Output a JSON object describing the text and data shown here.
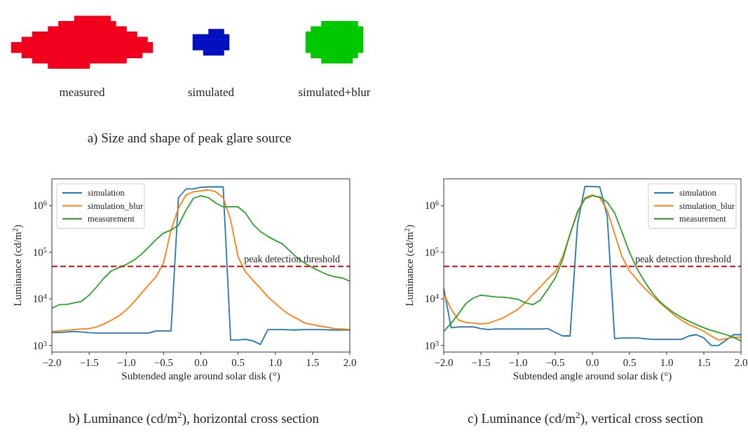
{
  "chart_data": [
    {
      "type": "other",
      "title": "a) Size and shape of peak glare source",
      "annotations": [
        "measured",
        "simulated",
        "simulated+blur"
      ]
    },
    {
      "type": "line",
      "title": "b) Luminance (cd/m$^{2}$), horizontal cross section",
      "xlabel": "Subtended angle around solar disk (°)",
      "ylabel": "Luminance (cd/m$^{2}$)",
      "log": "y",
      "legend": "top left",
      "xlim": [
        -2,
        2
      ],
      "xticks": [
        {
          "value": -2,
          "label": "−2.0"
        },
        {
          "value": -1.5,
          "label": "−1.5"
        },
        {
          "value": -1,
          "label": "−1.0"
        },
        {
          "value": -0.5,
          "label": "−0.5"
        },
        {
          "value": 0,
          "label": "0.0"
        },
        {
          "value": 0.5,
          "label": "0.5"
        },
        {
          "value": 1,
          "label": "1.0"
        },
        {
          "value": 1.5,
          "label": "1.5"
        },
        {
          "value": 2,
          "label": "2.0"
        }
      ],
      "ylim": [
        720,
        3800000
      ],
      "yticks": [
        {
          "value": 1000,
          "label": "10$^{3}$"
        },
        {
          "value": 10000,
          "label": "10$^{4}$"
        },
        {
          "value": 100000,
          "label": "10$^{5}$"
        },
        {
          "value": 1000000,
          "label": "10$^{6}$"
        }
      ],
      "x": [
        -2.0,
        -1.9,
        -1.8,
        -1.7,
        -1.6,
        -1.5,
        -1.4,
        -1.3,
        -1.2,
        -1.1,
        -1.0,
        -0.9,
        -0.8,
        -0.7,
        -0.6,
        -0.5,
        -0.4,
        -0.3,
        -0.2,
        -0.1,
        0.0,
        0.1,
        0.2,
        0.3,
        0.4,
        0.5,
        0.6,
        0.7,
        0.8,
        0.9,
        1.0,
        1.1,
        1.2,
        1.3,
        1.4,
        1.5,
        1.6,
        1.7,
        1.8,
        1.9,
        2.0
      ],
      "series": [
        {
          "name": "simulation",
          "color": "#1f77b4",
          "values": [
            1900,
            1900,
            1950,
            2000,
            1950,
            1880,
            1850,
            1850,
            1850,
            1850,
            1850,
            1850,
            1850,
            1850,
            2050,
            2050,
            2050,
            1500000,
            2300000,
            2300000,
            2500000,
            2550000,
            2550000,
            2550000,
            1300,
            1300,
            1350,
            1250,
            1050,
            2200,
            2200,
            2200,
            2150,
            2150,
            2200,
            2200,
            2200,
            2150,
            2150,
            2150,
            2150
          ]
        },
        {
          "name": "simulation_blur",
          "color": "#ff7f0e",
          "values": [
            2000,
            2050,
            2100,
            2200,
            2250,
            2300,
            2500,
            2900,
            3500,
            4300,
            5800,
            8500,
            13000,
            20000,
            30000,
            60000,
            300000,
            900000,
            1700000,
            2000000,
            2100000,
            2200000,
            2000000,
            1500000,
            500000,
            80000,
            38000,
            25000,
            17000,
            11000,
            8000,
            5800,
            4500,
            3700,
            3000,
            2800,
            2600,
            2450,
            2300,
            2250,
            2200
          ]
        },
        {
          "name": "measurement",
          "color": "#2ca02c",
          "values": [
            6300,
            7500,
            7600,
            8200,
            8900,
            12000,
            18000,
            28000,
            40000,
            47000,
            55000,
            68000,
            90000,
            130000,
            190000,
            260000,
            300000,
            380000,
            800000,
            1450000,
            1650000,
            1500000,
            1150000,
            950000,
            950000,
            950000,
            700000,
            400000,
            280000,
            220000,
            180000,
            150000,
            105000,
            75000,
            58000,
            47000,
            39000,
            33000,
            30000,
            28000,
            24000
          ]
        }
      ],
      "ref_lines": [
        {
          "axis": "y",
          "value": 50000,
          "label": "peak detection threshold",
          "color": "#d62728",
          "line_style": "dashed"
        }
      ]
    },
    {
      "type": "line",
      "title": "c) Luminance (cd/m$^{2}$), vertical cross section",
      "xlabel": "Subtended angle around solar disk (°)",
      "ylabel": "Luminance (cd/m$^{2}$)",
      "log": "y",
      "legend": "top right",
      "xlim": [
        -2,
        2
      ],
      "xticks": [
        {
          "value": -2,
          "label": "−2.0"
        },
        {
          "value": -1.5,
          "label": "−1.5"
        },
        {
          "value": -1,
          "label": "−1.0"
        },
        {
          "value": -0.5,
          "label": "−0.5"
        },
        {
          "value": 0,
          "label": "0.0"
        },
        {
          "value": 0.5,
          "label": "0.5"
        },
        {
          "value": 1,
          "label": "1.0"
        },
        {
          "value": 1.5,
          "label": "1.5"
        },
        {
          "value": 2,
          "label": "2.0"
        }
      ],
      "ylim": [
        720,
        3800000
      ],
      "yticks": [
        {
          "value": 1000,
          "label": "10$^{3}$"
        },
        {
          "value": 10000,
          "label": "10$^{4}$"
        },
        {
          "value": 100000,
          "label": "10$^{5}$"
        },
        {
          "value": 1000000,
          "label": "10$^{6}$"
        }
      ],
      "x": [
        -2.0,
        -1.9,
        -1.8,
        -1.7,
        -1.6,
        -1.5,
        -1.4,
        -1.3,
        -1.2,
        -1.1,
        -1.0,
        -0.9,
        -0.8,
        -0.7,
        -0.6,
        -0.5,
        -0.4,
        -0.3,
        -0.2,
        -0.1,
        0.0,
        0.1,
        0.2,
        0.3,
        0.4,
        0.5,
        0.6,
        0.7,
        0.8,
        0.9,
        1.0,
        1.1,
        1.2,
        1.3,
        1.4,
        1.5,
        1.6,
        1.7,
        1.8,
        1.9,
        2.0
      ],
      "series": [
        {
          "name": "simulation",
          "color": "#1f77b4",
          "values": [
            17000,
            2400,
            2500,
            2500,
            2500,
            2300,
            2200,
            2250,
            2250,
            2250,
            2250,
            2250,
            2250,
            2250,
            2300,
            1900,
            1600,
            1600,
            400000,
            2600000,
            2600000,
            2550000,
            600000,
            1400,
            1450,
            1450,
            1450,
            1400,
            1350,
            1350,
            1350,
            1350,
            1350,
            1600,
            1700,
            1450,
            1000,
            1000,
            1300,
            1700,
            1700
          ]
        },
        {
          "name": "simulation_blur",
          "color": "#ff7f0e",
          "values": [
            13000,
            6000,
            3500,
            3100,
            3000,
            2900,
            3000,
            3400,
            3900,
            4800,
            6000,
            8500,
            12500,
            18000,
            27000,
            38000,
            80000,
            250000,
            700000,
            1500000,
            1700000,
            1500000,
            800000,
            250000,
            80000,
            40000,
            26000,
            17000,
            12000,
            8500,
            6200,
            4500,
            3500,
            2800,
            2400,
            2000,
            1600,
            1300,
            1400,
            1500,
            1500
          ]
        },
        {
          "name": "measurement",
          "color": "#2ca02c",
          "values": [
            2000,
            3000,
            4800,
            8000,
            10500,
            12000,
            11500,
            11000,
            10800,
            10500,
            9800,
            8200,
            7500,
            9500,
            16000,
            28000,
            70000,
            250000,
            750000,
            1400000,
            1650000,
            1550000,
            1200000,
            700000,
            270000,
            100000,
            45000,
            24000,
            14000,
            9000,
            6500,
            5000,
            4000,
            3300,
            2800,
            2400,
            2100,
            1900,
            1700,
            1500,
            1250
          ]
        }
      ],
      "ref_lines": [
        {
          "axis": "y",
          "value": 50000,
          "label": "peak detection threshold",
          "color": "#d62728",
          "line_style": "dashed"
        }
      ]
    }
  ]
}
